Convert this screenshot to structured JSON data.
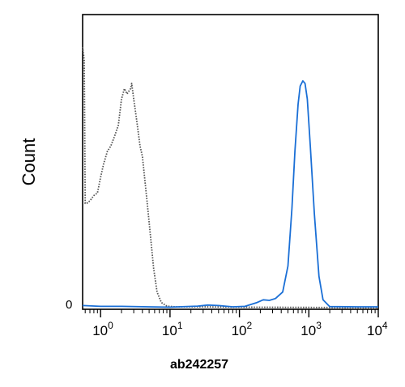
{
  "chart_data": {
    "type": "line",
    "title": "",
    "xlabel": "ab242257",
    "ylabel": "Count",
    "x_scale": "log",
    "xlim": [
      0.55,
      10000
    ],
    "ylim": [
      0,
      100
    ],
    "x_ticks": [
      {
        "base": "10",
        "exp": "0",
        "value": 1
      },
      {
        "base": "10",
        "exp": "1",
        "value": 10
      },
      {
        "base": "10",
        "exp": "2",
        "value": 100
      },
      {
        "base": "10",
        "exp": "3",
        "value": 1000
      },
      {
        "base": "10",
        "exp": "4",
        "value": 10000
      }
    ],
    "y_tick_labels": [
      "0"
    ],
    "grid": false,
    "legend": "none",
    "series": [
      {
        "style": "dotted",
        "color": "#555555",
        "points": [
          [
            0.55,
            100
          ],
          [
            0.58,
            95
          ],
          [
            0.6,
            40
          ],
          [
            0.63,
            40
          ],
          [
            0.7,
            41
          ],
          [
            0.8,
            43
          ],
          [
            0.9,
            44
          ],
          [
            1.0,
            50
          ],
          [
            1.1,
            55
          ],
          [
            1.25,
            60
          ],
          [
            1.4,
            62
          ],
          [
            1.6,
            66
          ],
          [
            1.8,
            70
          ],
          [
            2.0,
            80
          ],
          [
            2.2,
            84
          ],
          [
            2.4,
            82
          ],
          [
            2.7,
            84
          ],
          [
            2.8,
            86
          ],
          [
            3.0,
            80
          ],
          [
            3.3,
            72
          ],
          [
            3.7,
            62
          ],
          [
            4.0,
            58
          ],
          [
            4.3,
            50
          ],
          [
            4.7,
            40
          ],
          [
            5.2,
            28
          ],
          [
            5.8,
            15
          ],
          [
            6.5,
            6
          ],
          [
            7.5,
            2
          ],
          [
            9.0,
            0.6
          ],
          [
            12,
            0.3
          ],
          [
            30,
            0.3
          ],
          [
            100,
            0.2
          ],
          [
            1000,
            0.1
          ],
          [
            10000,
            0
          ]
        ]
      },
      {
        "style": "solid",
        "color": "#1a6fd6",
        "points": [
          [
            0.55,
            0.8
          ],
          [
            1,
            0.5
          ],
          [
            2,
            0.5
          ],
          [
            5,
            0.3
          ],
          [
            10,
            0.2
          ],
          [
            25,
            0.6
          ],
          [
            35,
            1.0
          ],
          [
            50,
            0.8
          ],
          [
            80,
            0.3
          ],
          [
            120,
            0.5
          ],
          [
            180,
            2
          ],
          [
            220,
            3
          ],
          [
            270,
            2.8
          ],
          [
            330,
            3.5
          ],
          [
            420,
            6
          ],
          [
            500,
            16
          ],
          [
            570,
            38
          ],
          [
            630,
            60
          ],
          [
            700,
            78
          ],
          [
            750,
            85
          ],
          [
            820,
            87
          ],
          [
            880,
            86
          ],
          [
            950,
            80
          ],
          [
            1050,
            62
          ],
          [
            1200,
            36
          ],
          [
            1400,
            12
          ],
          [
            1600,
            3
          ],
          [
            2000,
            0.4
          ],
          [
            5000,
            0.3
          ],
          [
            10000,
            0.3
          ]
        ]
      }
    ]
  }
}
